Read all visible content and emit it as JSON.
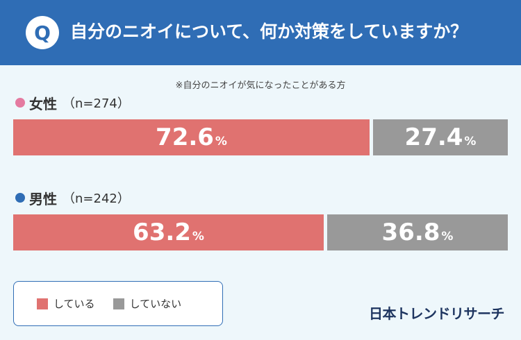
{
  "header": {
    "badge": "Q",
    "question": "自分のニオイについて、何か対策をしていますか？"
  },
  "note": "※自分のニオイが気になったことがある方",
  "colors": {
    "header_bg": "#2f6db5",
    "doing": "#e07270",
    "not_doing": "#999999",
    "female_dot": "#e47aa0",
    "male_dot": "#2f6db5"
  },
  "groups": [
    {
      "name": "女性",
      "n": "（n=274）"
    },
    {
      "name": "男性",
      "n": "（n=242）"
    }
  ],
  "chart_data": {
    "type": "bar",
    "stacked": true,
    "orientation": "horizontal",
    "percent": true,
    "categories": [
      "女性",
      "男性"
    ],
    "series": [
      {
        "name": "している",
        "values": [
          72.6,
          63.2
        ]
      },
      {
        "name": "していない",
        "values": [
          27.4,
          36.8
        ]
      }
    ],
    "value_labels": [
      [
        "72.6",
        "27.4"
      ],
      [
        "63.2",
        "36.8"
      ]
    ],
    "unit": "%",
    "legend_position": "bottom-left"
  },
  "legend": [
    "している",
    "していない"
  ],
  "brand": "日本トレンドリサーチ"
}
